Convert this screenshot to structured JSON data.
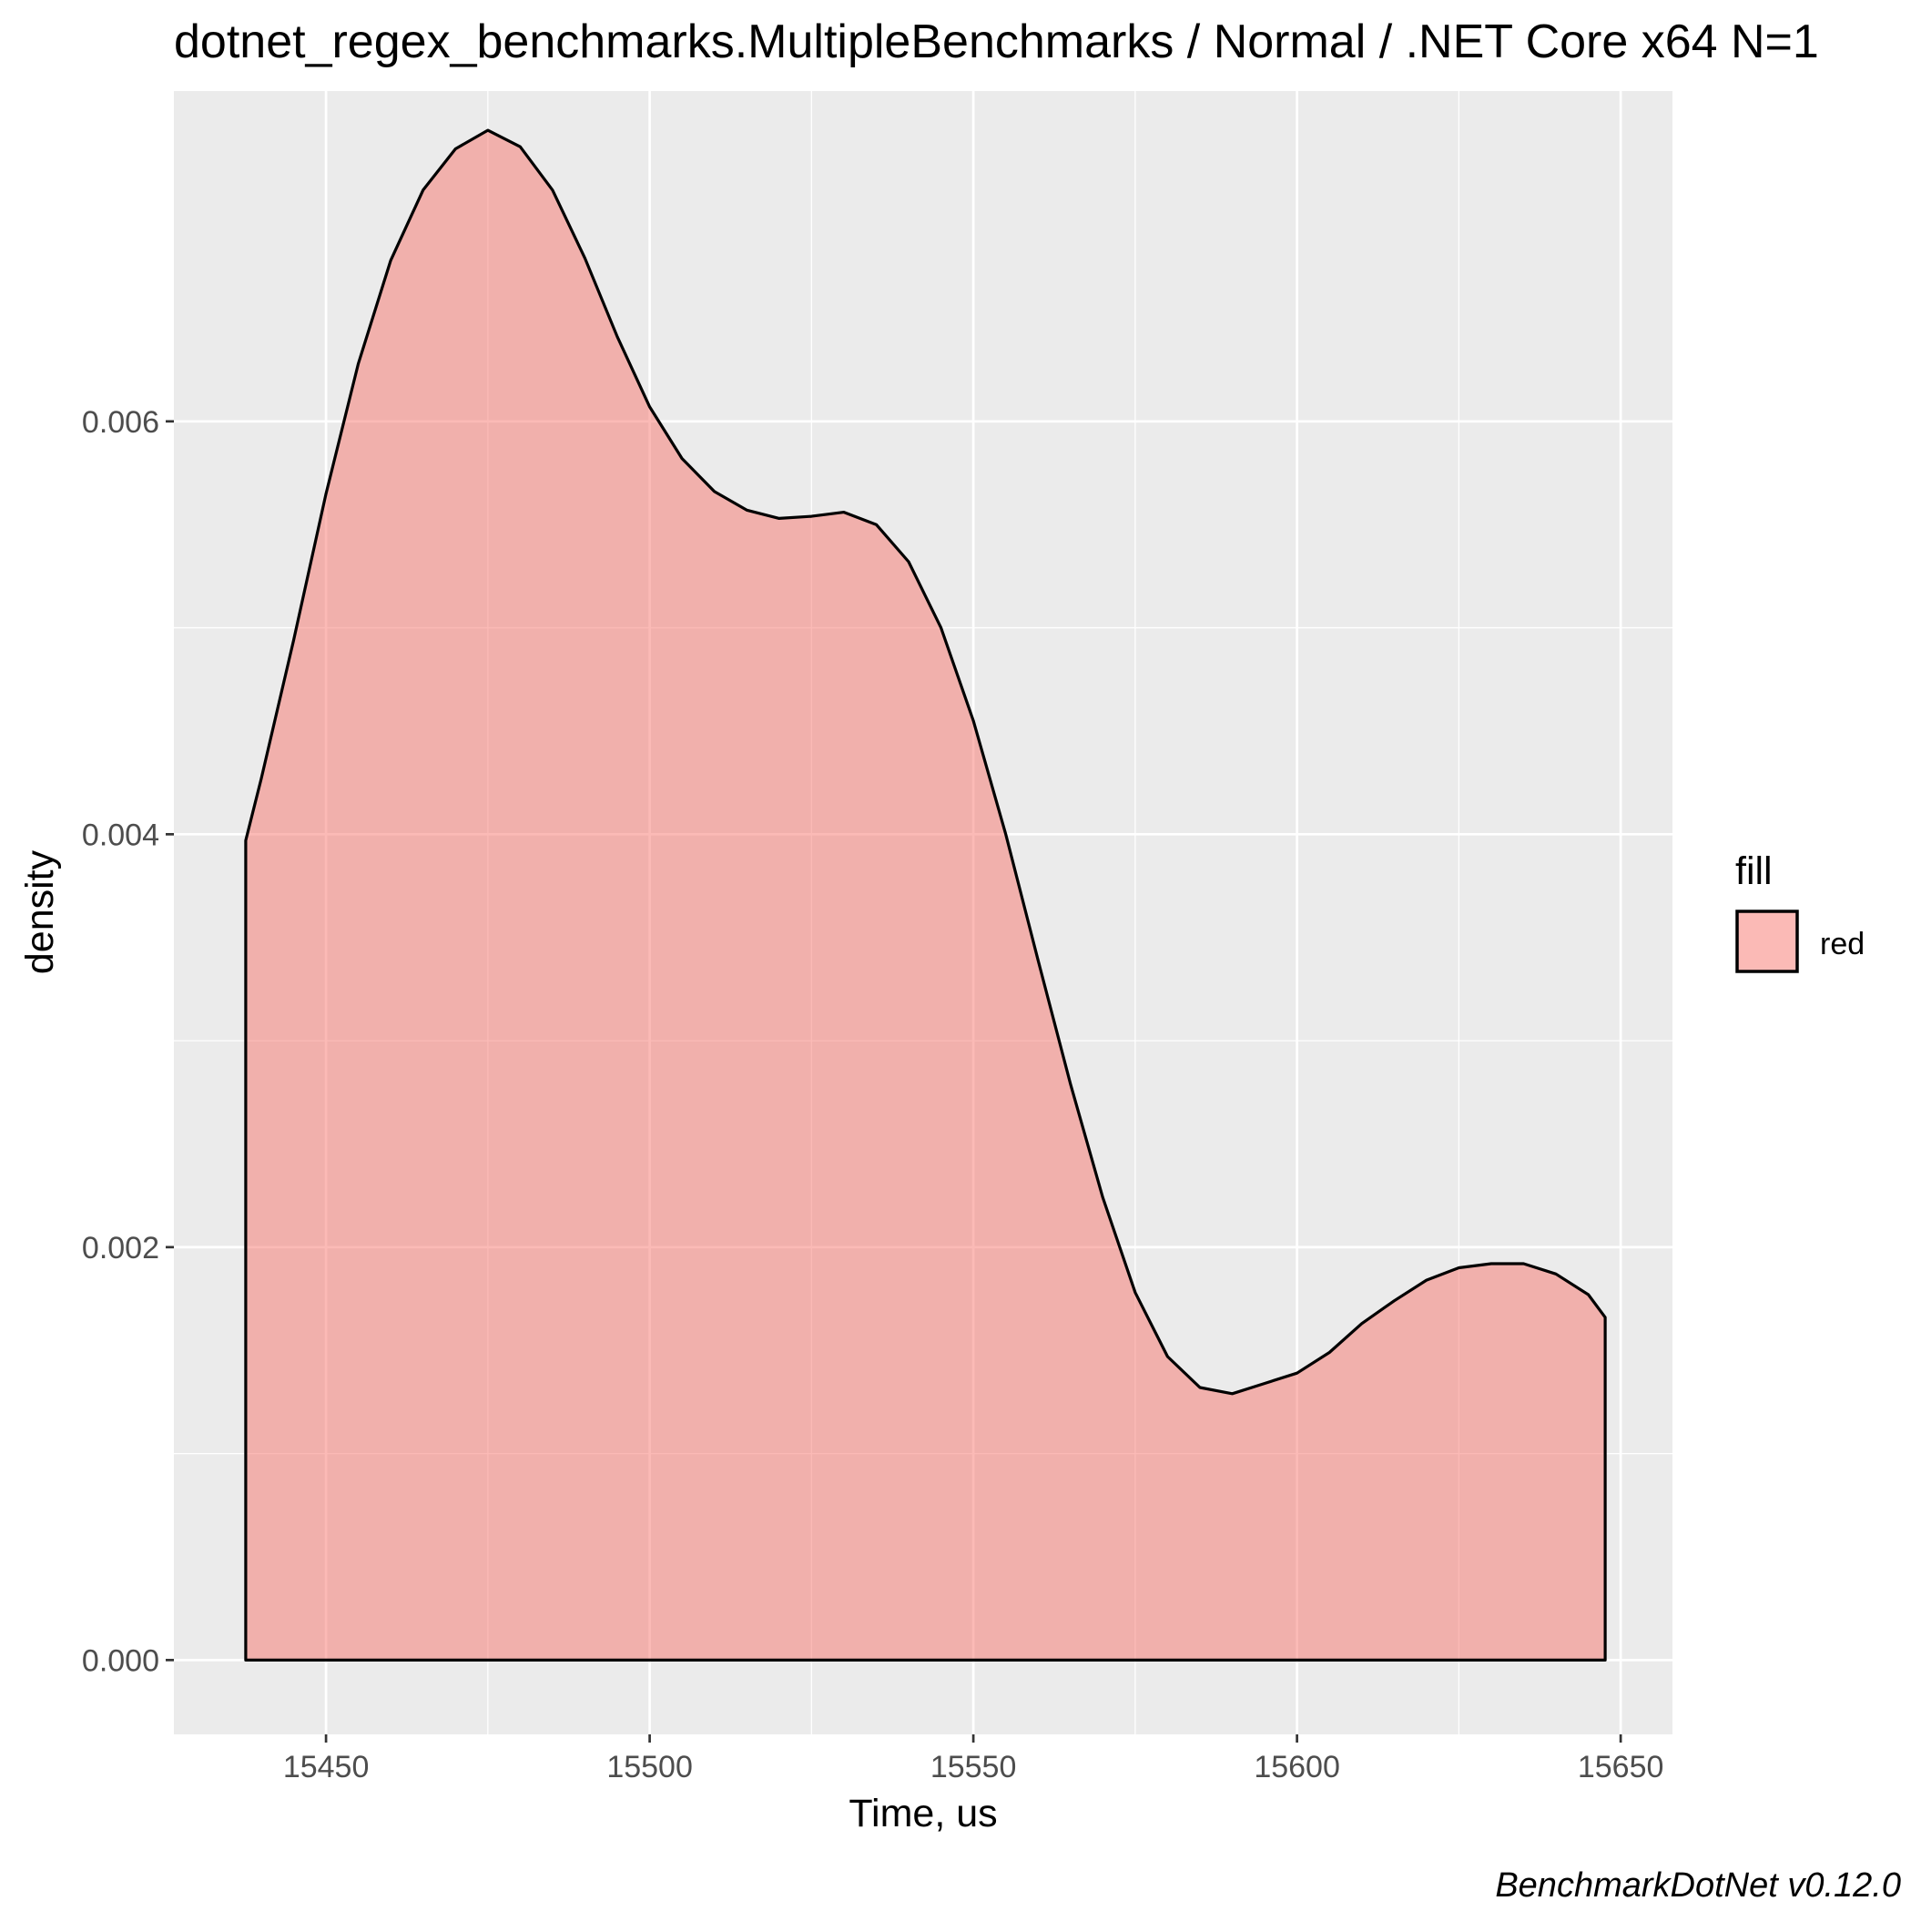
{
  "chart_data": {
    "type": "area",
    "title": "dotnet_regex_benchmarks.MultipleBenchmarks / Normal / .NET Core x64 N=1",
    "xlabel": "Time, us",
    "ylabel": "density",
    "caption": "BenchmarkDotNet v0.12.0",
    "xlim": [
      15426.5,
      15658
    ],
    "ylim": [
      -0.00036,
      0.0076
    ],
    "x_ticks": [
      15450,
      15500,
      15550,
      15600,
      15650
    ],
    "x_tick_labels": [
      "15450",
      "15500",
      "15550",
      "15600",
      "15650"
    ],
    "y_ticks": [
      0.0,
      0.002,
      0.004,
      0.006
    ],
    "y_tick_labels": [
      "0.000",
      "0.002",
      "0.004",
      "0.006"
    ],
    "grid": true,
    "legend": {
      "title": "fill",
      "position": "right",
      "entries": [
        {
          "label": "red",
          "color": "#F8766D"
        }
      ]
    },
    "series": [
      {
        "name": "red",
        "fill": "#F8766D",
        "fill_opacity": 0.5,
        "line_color": "#000000",
        "x": [
          15437.6,
          15440,
          15445,
          15450,
          15455,
          15460,
          15465,
          15470,
          15475,
          15480,
          15485,
          15490,
          15495,
          15500,
          15505,
          15510,
          15515,
          15520,
          15525,
          15530,
          15535,
          15540,
          15545,
          15550,
          15555,
          15560,
          15565,
          15570,
          15575,
          15580,
          15585,
          15590,
          15595,
          15600,
          15605,
          15610,
          15615,
          15620,
          15625,
          15630,
          15635,
          15640,
          15645,
          15647.6
        ],
        "y": [
          0.00397,
          0.00427,
          0.00494,
          0.00565,
          0.00628,
          0.00678,
          0.00712,
          0.00732,
          0.00741,
          0.00733,
          0.00712,
          0.00679,
          0.00641,
          0.00607,
          0.00582,
          0.00566,
          0.00557,
          0.00553,
          0.00554,
          0.00556,
          0.0055,
          0.00532,
          0.005,
          0.00455,
          0.004,
          0.00339,
          0.00279,
          0.00224,
          0.00178,
          0.00147,
          0.00132,
          0.00129,
          0.00134,
          0.00139,
          0.00149,
          0.00163,
          0.00174,
          0.00184,
          0.0019,
          0.00192,
          0.00192,
          0.00187,
          0.00177,
          0.00166
        ]
      }
    ]
  }
}
